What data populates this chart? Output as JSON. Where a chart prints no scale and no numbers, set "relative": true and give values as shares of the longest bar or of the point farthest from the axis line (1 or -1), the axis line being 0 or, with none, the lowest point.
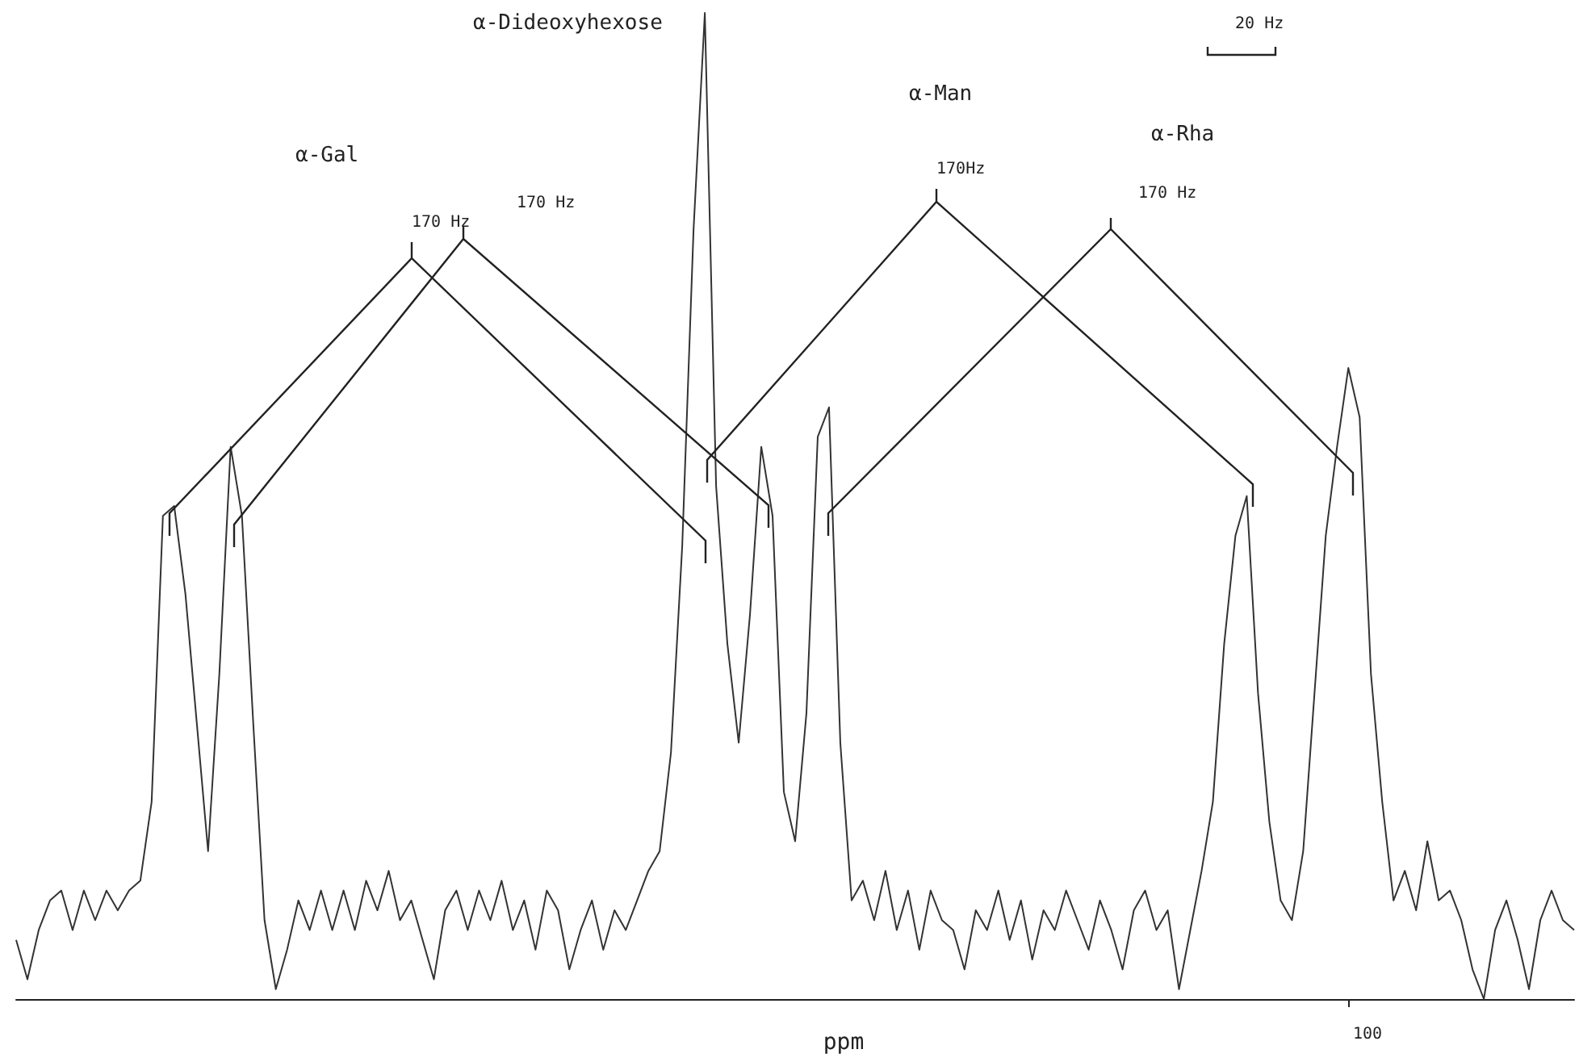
{
  "chart_data": {
    "type": "line",
    "relative": true,
    "xlabel": "ppm",
    "color": "#333333",
    "categories": [
      null,
      null,
      null,
      null,
      null,
      null,
      null,
      null,
      null,
      null,
      null,
      null,
      null,
      null,
      null,
      null,
      null,
      null,
      null,
      null,
      null,
      null,
      null,
      null,
      null,
      null,
      null,
      null,
      null,
      null,
      null,
      null,
      null,
      null,
      null,
      null,
      null,
      null,
      null,
      null,
      null,
      null,
      null,
      null,
      null,
      null,
      null,
      null,
      null,
      null,
      null,
      null,
      null,
      null,
      null,
      null,
      null,
      null,
      null,
      null,
      null,
      null,
      null,
      null,
      null,
      null,
      null,
      null,
      null,
      null,
      null,
      null,
      null,
      null,
      null,
      null,
      null,
      null,
      null,
      null,
      null,
      null,
      null,
      null,
      null,
      null,
      null,
      null,
      null,
      null,
      null,
      null,
      null,
      null,
      null,
      null,
      null,
      null,
      null,
      null,
      null,
      null,
      null,
      null,
      null,
      null,
      null,
      null,
      null,
      null,
      null,
      null,
      null,
      null,
      null,
      null,
      null,
      null,
      null,
      null,
      null,
      null,
      null,
      null,
      null,
      null,
      null,
      null,
      null,
      null,
      null,
      null,
      null,
      null,
      null,
      null,
      null,
      null,
      null
    ],
    "values": [
      0.06,
      0.02,
      0.07,
      0.1,
      0.11,
      0.07,
      0.11,
      0.08,
      0.11,
      0.09,
      0.11,
      0.12,
      0.2,
      0.49,
      0.5,
      0.41,
      0.28,
      0.15,
      0.33,
      0.56,
      0.49,
      0.28,
      0.08,
      0.01,
      0.05,
      0.1,
      0.07,
      0.11,
      0.07,
      0.11,
      0.07,
      0.12,
      0.09,
      0.13,
      0.08,
      0.1,
      0.06,
      0.02,
      0.09,
      0.11,
      0.07,
      0.11,
      0.08,
      0.12,
      0.07,
      0.1,
      0.05,
      0.11,
      0.09,
      0.03,
      0.07,
      0.1,
      0.05,
      0.09,
      0.07,
      0.1,
      0.13,
      0.15,
      0.25,
      0.46,
      0.78,
      1,
      0.52,
      0.36,
      0.26,
      0.39,
      0.56,
      0.49,
      0.21,
      0.16,
      0.29,
      0.57,
      0.6,
      0.26,
      0.1,
      0.12,
      0.08,
      0.13,
      0.07,
      0.11,
      0.05,
      0.11,
      0.08,
      0.07,
      0.03,
      0.09,
      0.07,
      0.11,
      0.06,
      0.1,
      0.04,
      0.09,
      0.07,
      0.11,
      0.08,
      0.05,
      0.1,
      0.07,
      0.03,
      0.09,
      0.11,
      0.07,
      0.09,
      0.01,
      0.07,
      0.13,
      0.2,
      0.36,
      0.47,
      0.51,
      0.31,
      0.18,
      0.1,
      0.08,
      0.15,
      0.31,
      0.47,
      0.56,
      0.64,
      0.59,
      0.33,
      0.2,
      0.1,
      0.13,
      0.09,
      0.16,
      0.1,
      0.11,
      0.08,
      0.03,
      0,
      0.07,
      0.1,
      0.06,
      0.01,
      0.08,
      0.11,
      0.08,
      0.07
    ],
    "annotations": [
      "α-Gal",
      "α-Dideoxyhexose",
      "α-Man",
      "α-Rha",
      "170 Hz",
      "170 Hz",
      "170Hz",
      "170 Hz",
      "20 Hz",
      "100"
    ]
  }
}
